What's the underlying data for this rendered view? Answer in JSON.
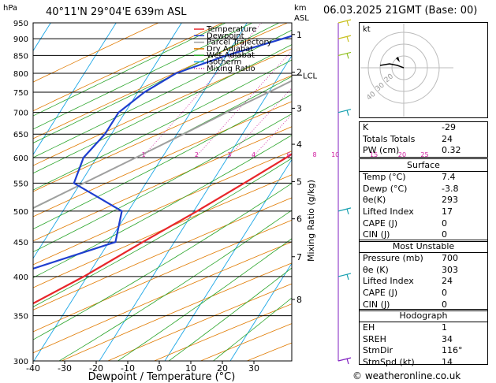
{
  "header": {
    "hpa_label": "hPa",
    "location": "40°11'N  29°04'E  639m  ASL",
    "km_label": "km",
    "asl_label": "ASL",
    "datetime": "06.03.2025  21GMT  (Base: 00)"
  },
  "axes": {
    "xlabel": "Dewpoint / Temperature (°C)",
    "mixing_label": "Mixing Ratio (g/kg)",
    "pressure_levels": [
      300,
      350,
      400,
      450,
      500,
      550,
      600,
      650,
      700,
      750,
      800,
      850,
      900,
      950
    ],
    "temp_ticks": [
      -40,
      -30,
      -20,
      -10,
      0,
      10,
      20,
      30
    ],
    "km_ticks": [
      {
        "km": "1",
        "p": 913
      },
      {
        "km": "2",
        "p": 803
      },
      {
        "km": "3",
        "p": 710
      },
      {
        "km": "4",
        "p": 628
      },
      {
        "km": "5",
        "p": 553
      },
      {
        "km": "6",
        "p": 487
      },
      {
        "km": "7",
        "p": 428
      },
      {
        "km": "8",
        "p": 370
      }
    ],
    "lcl_label": "LCL",
    "lcl_p": 795,
    "mixing_ratios": [
      "1",
      "2",
      "3",
      "4",
      "6",
      "8",
      "10",
      "15",
      "20",
      "25"
    ]
  },
  "legend": [
    {
      "label": "Temperature",
      "color": "#e8262a",
      "style": "solid"
    },
    {
      "label": "Dewpoint",
      "color": "#1f3fcf",
      "style": "solid"
    },
    {
      "label": "Parcel Trajectory",
      "color": "#a0a0a0",
      "style": "solid"
    },
    {
      "label": "Dry Adiabat",
      "color": "#e07a00",
      "style": "solid"
    },
    {
      "label": "Wet Adiabat",
      "color": "#2aa52a",
      "style": "solid"
    },
    {
      "label": "Isotherm",
      "color": "#1aa6e6",
      "style": "solid"
    },
    {
      "label": "Mixing Ratio",
      "color": "#d020a0",
      "style": "dotted"
    }
  ],
  "chart_data": {
    "type": "skew-t",
    "temperature": [
      [
        950,
        11.8
      ],
      [
        900,
        13.5
      ],
      [
        850,
        14.5
      ],
      [
        800,
        11.5
      ],
      [
        750,
        8.3
      ],
      [
        700,
        5.5
      ],
      [
        650,
        2.2
      ],
      [
        600,
        -1.0
      ],
      [
        550,
        -5.0
      ],
      [
        500,
        -9.5
      ],
      [
        450,
        -14.8
      ],
      [
        400,
        -20.5
      ],
      [
        350,
        -28.0
      ],
      [
        300,
        -36.0
      ]
    ],
    "dewpoint": [
      [
        950,
        -6.5
      ],
      [
        900,
        -13
      ],
      [
        850,
        -20
      ],
      [
        800,
        -26
      ],
      [
        750,
        -29
      ],
      [
        700,
        -31
      ],
      [
        650,
        -31
      ],
      [
        600,
        -32
      ],
      [
        550,
        -31
      ],
      [
        500,
        -21
      ],
      [
        450,
        -19
      ],
      [
        400,
        -32
      ],
      [
        350,
        -38
      ],
      [
        300,
        -45
      ]
    ],
    "parcel": [
      [
        950,
        7.4
      ],
      [
        900,
        3.0
      ],
      [
        850,
        -1.5
      ],
      [
        800,
        -6.0
      ],
      [
        750,
        -10.0
      ],
      [
        700,
        -14.5
      ],
      [
        650,
        -19.0
      ],
      [
        600,
        -24.0
      ],
      [
        550,
        -29.5
      ],
      [
        500,
        -35.5
      ],
      [
        450,
        -42.0
      ],
      [
        400,
        -49.5
      ],
      [
        350,
        -58.0
      ],
      [
        300,
        -67.0
      ]
    ],
    "xlim": [
      -40,
      40
    ],
    "ylim": [
      950,
      300
    ]
  },
  "hodograph": {
    "label": "kt",
    "ring_labels": [
      "40",
      "30",
      "20"
    ]
  },
  "indices": {
    "top": [
      {
        "label": "K",
        "value": "-29"
      },
      {
        "label": "Totals Totals",
        "value": "24"
      },
      {
        "label": "PW (cm)",
        "value": "0.32"
      }
    ],
    "surface": {
      "title": "Surface",
      "rows": [
        {
          "label": "Temp (°C)",
          "value": "7.4"
        },
        {
          "label": "Dewp (°C)",
          "value": "-3.8"
        },
        {
          "label": "θe(K)",
          "value": "293"
        },
        {
          "label": "Lifted Index",
          "value": "17"
        },
        {
          "label": "CAPE (J)",
          "value": "0"
        },
        {
          "label": "CIN (J)",
          "value": "0"
        }
      ]
    },
    "most_unstable": {
      "title": "Most Unstable",
      "rows": [
        {
          "label": "Pressure (mb)",
          "value": "700"
        },
        {
          "label": "θe (K)",
          "value": "303"
        },
        {
          "label": "Lifted Index",
          "value": "24"
        },
        {
          "label": "CAPE (J)",
          "value": "0"
        },
        {
          "label": "CIN (J)",
          "value": "0"
        }
      ]
    },
    "hodograph_box": {
      "title": "Hodograph",
      "rows": [
        {
          "label": "EH",
          "value": "1"
        },
        {
          "label": "SREH",
          "value": "34"
        },
        {
          "label": "StmDir",
          "value": "116°"
        },
        {
          "label": "StmSpd (kt)",
          "value": "14"
        }
      ]
    }
  },
  "footer": "© weatheronline.co.uk"
}
